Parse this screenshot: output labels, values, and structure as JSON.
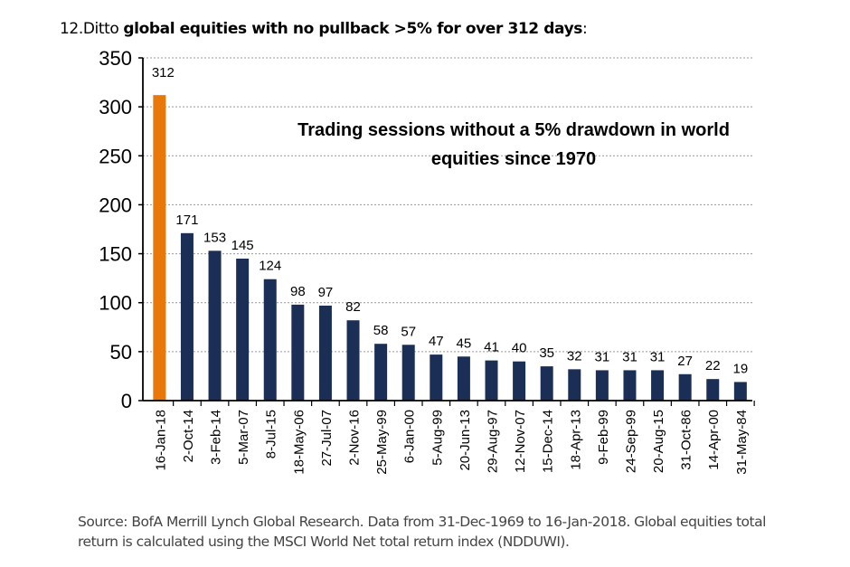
{
  "heading": {
    "prefix": "12.Ditto ",
    "bold": "global equities with no pullback >5% for over 312 days",
    "suffix": ":"
  },
  "source": "Source: BofA Merrill Lynch Global Research. Data from 31-Dec-1969 to 16-Jan-2018. Global equities total return is calculated using the MSCI World Net total return index (NDDUWI).",
  "colors": {
    "highlight": "#E8780A",
    "bar": "#1B2E55"
  },
  "chart_data": {
    "type": "bar",
    "title_line1": "Trading sessions without a 5% drawdown in world",
    "title_line2": "equities since 1970",
    "xlabel": "",
    "ylabel": "",
    "ylim": [
      0,
      350
    ],
    "yticks": [
      0,
      50,
      100,
      150,
      200,
      250,
      300,
      350
    ],
    "grid": true,
    "categories": [
      "16-Jan-18",
      "2-Oct-14",
      "3-Feb-14",
      "5-Mar-07",
      "8-Jul-15",
      "18-May-06",
      "27-Jul-07",
      "2-Nov-16",
      "25-May-99",
      "6-Jan-00",
      "5-Aug-99",
      "20-Jun-13",
      "29-Aug-97",
      "12-Nov-07",
      "15-Dec-14",
      "18-Apr-13",
      "9-Feb-99",
      "24-Sep-99",
      "20-Aug-15",
      "31-Oct-86",
      "14-Apr-00",
      "31-May-84"
    ],
    "values": [
      312,
      171,
      153,
      145,
      124,
      98,
      97,
      82,
      58,
      57,
      47,
      45,
      41,
      40,
      35,
      32,
      31,
      31,
      31,
      27,
      22,
      19
    ],
    "highlight_index": 0
  }
}
